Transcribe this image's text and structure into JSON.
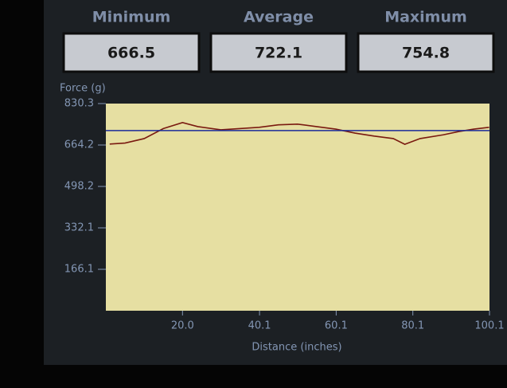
{
  "stats": [
    {
      "label": "Minimum",
      "value": 666.5
    },
    {
      "label": "Average",
      "value": 722.1
    },
    {
      "label": "Maximum",
      "value": 754.8
    }
  ],
  "chart_data": {
    "type": "line",
    "ylabel": "Force (g)",
    "xlabel": "Distance (inches)",
    "x": [
      1,
      5,
      10,
      15,
      20,
      24,
      30,
      40,
      45,
      50,
      55,
      60,
      65,
      70,
      75,
      78,
      82,
      88,
      92,
      96,
      100
    ],
    "series": [
      {
        "name": "Force",
        "color": "#7a1a10",
        "values": [
          668,
          672,
          690,
          730,
          754,
          738,
          725,
          735,
          745,
          748,
          738,
          728,
          712,
          700,
          690,
          667,
          690,
          705,
          718,
          728,
          735
        ]
      }
    ],
    "average_color": "#1a2a9a",
    "plot_color": "#e6dfa2",
    "xlim": [
      0,
      100.1
    ],
    "ylim": [
      0,
      830.3
    ],
    "xticks": [
      {
        "value": 20,
        "label": "20.0"
      },
      40.1,
      60.1,
      80.1,
      100.1
    ],
    "yticks": [
      830.3,
      664.2,
      498.2,
      332.1,
      166.1
    ]
  }
}
